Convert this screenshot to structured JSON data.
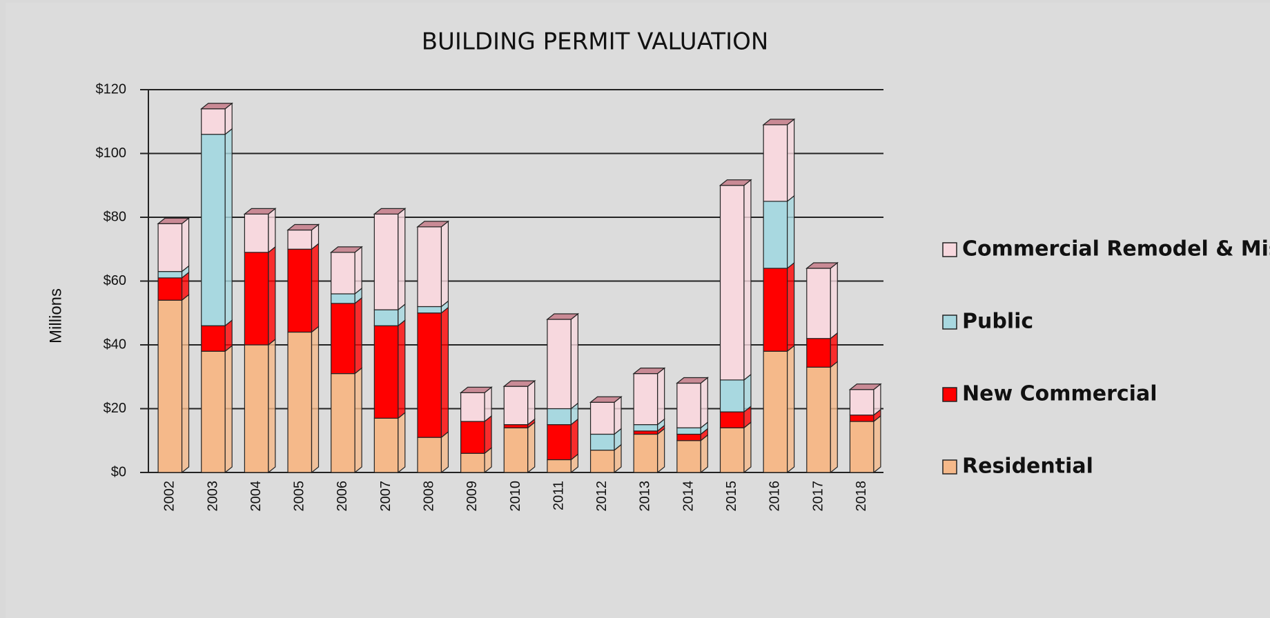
{
  "chart_data": {
    "type": "bar",
    "stacked": true,
    "title": "BUILDING PERMIT VALUATION",
    "y_label": "Millions",
    "categories": [
      "2002",
      "2003",
      "2004",
      "2005",
      "2006",
      "2007",
      "2008",
      "2009",
      "2010",
      "2011",
      "2012",
      "2013",
      "2014",
      "2015",
      "2016",
      "2017",
      "2018"
    ],
    "series": [
      {
        "name": "Residential",
        "color": "#f5b98a",
        "values": [
          54,
          38,
          40,
          44,
          31,
          17,
          11,
          6,
          14,
          4,
          7,
          12,
          10,
          14,
          38,
          33,
          16
        ]
      },
      {
        "name": "New Commercial",
        "color": "#ff0000",
        "values": [
          7,
          8,
          29,
          26,
          22,
          29,
          39,
          10,
          1,
          11,
          0,
          1,
          2,
          5,
          26,
          9,
          2
        ]
      },
      {
        "name": "Public",
        "color": "#a8d8e0",
        "values": [
          2,
          60,
          0,
          0,
          3,
          5,
          2,
          0,
          0,
          5,
          5,
          2,
          2,
          10,
          21,
          0,
          0
        ]
      },
      {
        "name": "Commercial Remodel & Misc",
        "color": "#f7d8de",
        "values": [
          15,
          8,
          12,
          6,
          13,
          30,
          25,
          9,
          12,
          28,
          10,
          16,
          14,
          61,
          24,
          22,
          8
        ]
      }
    ],
    "ylim": [
      0,
      120
    ],
    "yticks": [
      {
        "value": 0,
        "label": "$0"
      },
      {
        "value": 20,
        "label": "$20"
      },
      {
        "value": 40,
        "label": "$40"
      },
      {
        "value": 60,
        "label": "$60"
      },
      {
        "value": 80,
        "label": "$80"
      },
      {
        "value": 100,
        "label": "$100"
      },
      {
        "value": 120,
        "label": "$120"
      }
    ],
    "grid": true,
    "legend": "right"
  }
}
